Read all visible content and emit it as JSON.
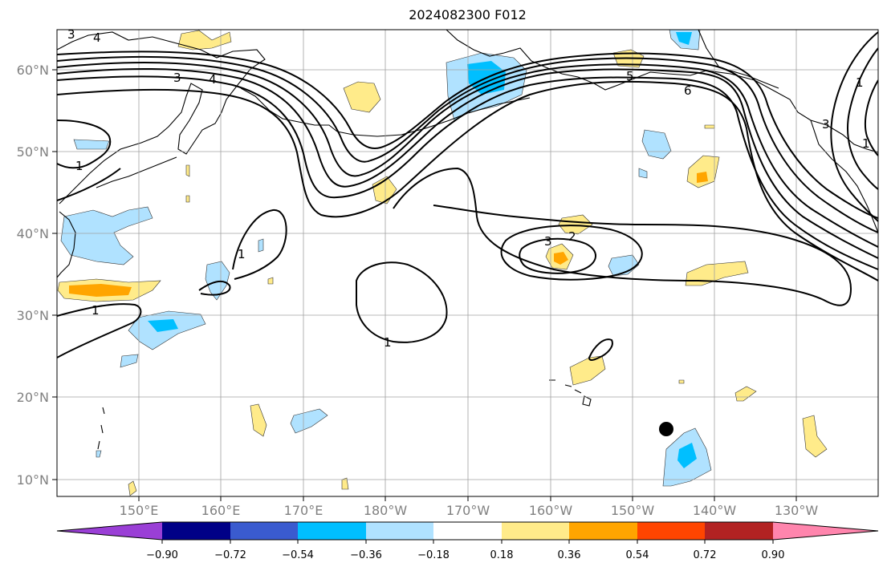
{
  "title": "2024082300 F012",
  "map": {
    "lat_labels": [
      "60°N",
      "50°N",
      "40°N",
      "30°N",
      "20°N",
      "10°N"
    ],
    "lon_labels": [
      "150°E",
      "160°E",
      "170°E",
      "180°W",
      "170°W",
      "160°W",
      "150°W",
      "140°W",
      "130°W"
    ],
    "contour_labels": [
      "3",
      "4",
      "3",
      "4",
      "5",
      "6",
      "1",
      "1",
      "1",
      "3",
      "2",
      "1",
      "1",
      "3",
      "1"
    ],
    "colors": {
      "land_outline": "#000000",
      "gridline": "#a0a0a0",
      "tick_label": "#808080"
    }
  },
  "colorbar": {
    "ticks": [
      "−0.90",
      "−0.72",
      "−0.54",
      "−0.36",
      "−0.18",
      "0.18",
      "0.36",
      "0.54",
      "0.72",
      "0.90"
    ],
    "colors": [
      "#9a3fd6",
      "#000087",
      "#3a5bcf",
      "#00bfff",
      "#b0e2ff",
      "#ffffff",
      "#ffeb8a",
      "#ffa500",
      "#ff4500",
      "#b22222",
      "#ff85ad"
    ]
  }
}
